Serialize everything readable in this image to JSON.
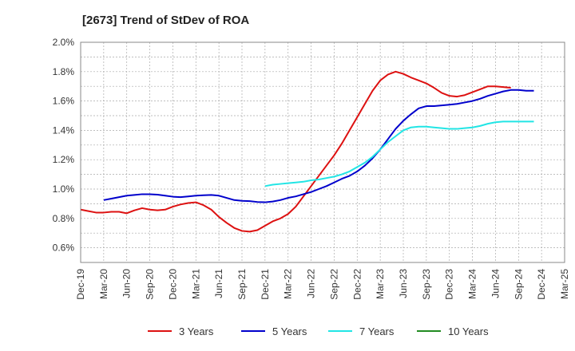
{
  "chart_data": {
    "type": "line",
    "title": "[2673]  Trend of StDev of ROA",
    "xlabel": "",
    "ylabel": "",
    "x_ticks": [
      "Dec-19",
      "Mar-20",
      "Jun-20",
      "Sep-20",
      "Dec-20",
      "Mar-21",
      "Jun-21",
      "Sep-21",
      "Dec-21",
      "Mar-22",
      "Jun-22",
      "Sep-22",
      "Dec-22",
      "Mar-23",
      "Jun-23",
      "Sep-23",
      "Dec-23",
      "Mar-24",
      "Jun-24",
      "Sep-24",
      "Dec-24",
      "Mar-25"
    ],
    "y_ticks": [
      "0.6%",
      "0.8%",
      "1.0%",
      "1.2%",
      "1.4%",
      "1.6%",
      "1.8%",
      "2.0%"
    ],
    "ylim": [
      0.5,
      2.0
    ],
    "grid": true,
    "legend_position": "bottom",
    "series": [
      {
        "name": "3 Years",
        "color": "#dd1111",
        "points": [
          [
            0,
            0.86
          ],
          [
            1,
            0.85
          ],
          [
            2,
            0.84
          ],
          [
            3,
            0.84
          ],
          [
            4,
            0.845
          ],
          [
            5,
            0.845
          ],
          [
            6,
            0.835
          ],
          [
            7,
            0.855
          ],
          [
            8,
            0.87
          ],
          [
            9,
            0.86
          ],
          [
            10,
            0.855
          ],
          [
            11,
            0.86
          ],
          [
            12,
            0.88
          ],
          [
            13,
            0.895
          ],
          [
            14,
            0.905
          ],
          [
            15,
            0.91
          ],
          [
            16,
            0.89
          ],
          [
            17,
            0.86
          ],
          [
            18,
            0.81
          ],
          [
            19,
            0.77
          ],
          [
            20,
            0.735
          ],
          [
            21,
            0.715
          ],
          [
            22,
            0.71
          ],
          [
            23,
            0.72
          ],
          [
            24,
            0.75
          ],
          [
            25,
            0.78
          ],
          [
            26,
            0.8
          ],
          [
            27,
            0.83
          ],
          [
            28,
            0.88
          ],
          [
            29,
            0.95
          ],
          [
            30,
            1.02
          ],
          [
            31,
            1.09
          ],
          [
            32,
            1.16
          ],
          [
            33,
            1.23
          ],
          [
            34,
            1.31
          ],
          [
            35,
            1.4
          ],
          [
            36,
            1.49
          ],
          [
            37,
            1.58
          ],
          [
            38,
            1.67
          ],
          [
            39,
            1.74
          ],
          [
            40,
            1.78
          ],
          [
            41,
            1.8
          ],
          [
            42,
            1.785
          ],
          [
            43,
            1.76
          ],
          [
            44,
            1.74
          ],
          [
            45,
            1.72
          ],
          [
            46,
            1.69
          ],
          [
            47,
            1.655
          ],
          [
            48,
            1.635
          ],
          [
            49,
            1.63
          ],
          [
            50,
            1.64
          ],
          [
            51,
            1.66
          ],
          [
            52,
            1.68
          ],
          [
            53,
            1.7
          ],
          [
            54,
            1.7
          ],
          [
            55,
            1.695
          ],
          [
            56,
            1.69
          ]
        ]
      },
      {
        "name": "5 Years",
        "color": "#0000cc",
        "points": [
          [
            3,
            0.925
          ],
          [
            4,
            0.935
          ],
          [
            5,
            0.945
          ],
          [
            6,
            0.955
          ],
          [
            7,
            0.96
          ],
          [
            8,
            0.965
          ],
          [
            9,
            0.965
          ],
          [
            10,
            0.962
          ],
          [
            11,
            0.955
          ],
          [
            12,
            0.948
          ],
          [
            13,
            0.945
          ],
          [
            14,
            0.95
          ],
          [
            15,
            0.955
          ],
          [
            16,
            0.958
          ],
          [
            17,
            0.96
          ],
          [
            18,
            0.955
          ],
          [
            19,
            0.94
          ],
          [
            20,
            0.925
          ],
          [
            21,
            0.92
          ],
          [
            22,
            0.918
          ],
          [
            23,
            0.912
          ],
          [
            24,
            0.91
          ],
          [
            25,
            0.915
          ],
          [
            26,
            0.925
          ],
          [
            27,
            0.94
          ],
          [
            28,
            0.95
          ],
          [
            29,
            0.965
          ],
          [
            30,
            0.98
          ],
          [
            31,
            1.0
          ],
          [
            32,
            1.02
          ],
          [
            33,
            1.045
          ],
          [
            34,
            1.07
          ],
          [
            35,
            1.09
          ],
          [
            36,
            1.12
          ],
          [
            37,
            1.16
          ],
          [
            38,
            1.21
          ],
          [
            39,
            1.27
          ],
          [
            40,
            1.34
          ],
          [
            41,
            1.41
          ],
          [
            42,
            1.465
          ],
          [
            43,
            1.51
          ],
          [
            44,
            1.55
          ],
          [
            45,
            1.565
          ],
          [
            46,
            1.565
          ],
          [
            47,
            1.57
          ],
          [
            48,
            1.575
          ],
          [
            49,
            1.58
          ],
          [
            50,
            1.59
          ],
          [
            51,
            1.6
          ],
          [
            52,
            1.615
          ],
          [
            53,
            1.635
          ],
          [
            54,
            1.65
          ],
          [
            55,
            1.665
          ],
          [
            56,
            1.675
          ],
          [
            57,
            1.675
          ],
          [
            58,
            1.67
          ],
          [
            59,
            1.67
          ]
        ]
      },
      {
        "name": "7 Years",
        "color": "#22e5e5",
        "points": [
          [
            24,
            1.02
          ],
          [
            25,
            1.03
          ],
          [
            26,
            1.035
          ],
          [
            27,
            1.04
          ],
          [
            28,
            1.045
          ],
          [
            29,
            1.05
          ],
          [
            30,
            1.06
          ],
          [
            31,
            1.065
          ],
          [
            32,
            1.075
          ],
          [
            33,
            1.085
          ],
          [
            34,
            1.1
          ],
          [
            35,
            1.12
          ],
          [
            36,
            1.15
          ],
          [
            37,
            1.18
          ],
          [
            38,
            1.22
          ],
          [
            39,
            1.27
          ],
          [
            40,
            1.32
          ],
          [
            41,
            1.36
          ],
          [
            42,
            1.4
          ],
          [
            43,
            1.42
          ],
          [
            44,
            1.425
          ],
          [
            45,
            1.425
          ],
          [
            46,
            1.42
          ],
          [
            47,
            1.415
          ],
          [
            48,
            1.41
          ],
          [
            49,
            1.41
          ],
          [
            50,
            1.415
          ],
          [
            51,
            1.42
          ],
          [
            52,
            1.43
          ],
          [
            53,
            1.445
          ],
          [
            54,
            1.455
          ],
          [
            55,
            1.46
          ],
          [
            56,
            1.46
          ],
          [
            57,
            1.46
          ],
          [
            58,
            1.46
          ],
          [
            59,
            1.46
          ]
        ]
      },
      {
        "name": "10 Years",
        "color": "#228b22",
        "points": []
      }
    ]
  }
}
